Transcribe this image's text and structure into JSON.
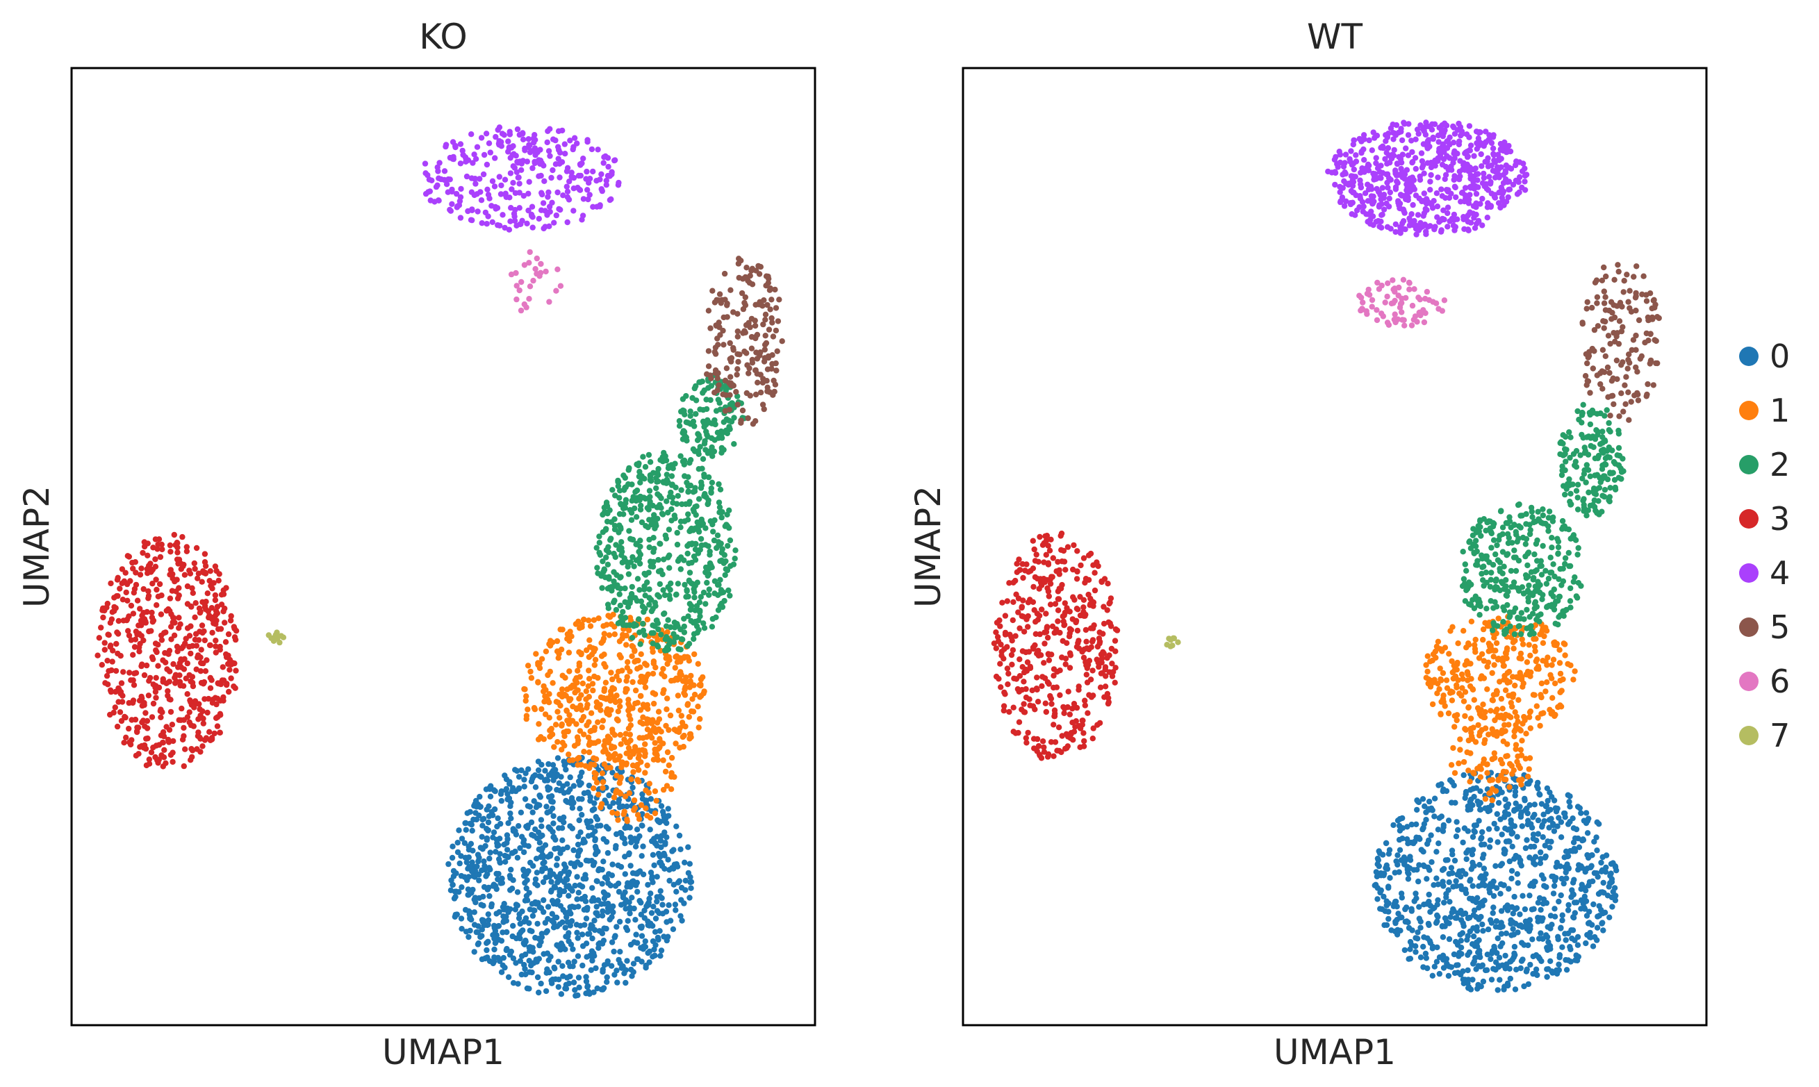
{
  "chart_data": {
    "type": "scatter",
    "legend": {
      "placement": "right",
      "entries": [
        {
          "label": "0",
          "color": "#1f77b4"
        },
        {
          "label": "1",
          "color": "#ff7f0e"
        },
        {
          "label": "2",
          "color": "#279e68"
        },
        {
          "label": "3",
          "color": "#d62728"
        },
        {
          "label": "4",
          "color": "#aa40fc"
        },
        {
          "label": "5",
          "color": "#8c564b"
        },
        {
          "label": "6",
          "color": "#e377c2"
        },
        {
          "label": "7",
          "color": "#b5bd61"
        }
      ]
    },
    "panels": [
      {
        "title": "KO",
        "xlabel": "UMAP1",
        "ylabel": "UMAP2",
        "grid": false,
        "ticks": false,
        "xlim": [
          0,
          10
        ],
        "ylim": [
          0,
          10
        ],
        "clusters": [
          {
            "label": "0",
            "n": 1150,
            "shape": "ellipse",
            "cx": 6.7,
            "cy": 1.55,
            "rx": 1.65,
            "ry": 1.25
          },
          {
            "label": "1",
            "n": 520,
            "shape": "ellipse",
            "cx": 7.3,
            "cy": 3.45,
            "rx": 1.25,
            "ry": 0.85
          },
          {
            "label": "1",
            "n": 90,
            "shape": "ellipse",
            "cx": 7.55,
            "cy": 2.6,
            "rx": 0.6,
            "ry": 0.5
          },
          {
            "label": "2",
            "n": 560,
            "shape": "ellipse",
            "cx": 8.0,
            "cy": 4.95,
            "rx": 0.95,
            "ry": 1.05
          },
          {
            "label": "2",
            "n": 140,
            "shape": "ellipse",
            "cx": 8.6,
            "cy": 6.35,
            "rx": 0.45,
            "ry": 0.45
          },
          {
            "label": "3",
            "n": 560,
            "shape": "ellipse",
            "cx": 1.3,
            "cy": 3.9,
            "rx": 0.95,
            "ry": 1.25
          },
          {
            "label": "4",
            "n": 320,
            "shape": "ellipse",
            "cx": 6.05,
            "cy": 8.85,
            "rx": 1.35,
            "ry": 0.55
          },
          {
            "label": "5",
            "n": 190,
            "shape": "ellipse",
            "cx": 9.05,
            "cy": 7.15,
            "rx": 0.55,
            "ry": 0.9
          },
          {
            "label": "6",
            "n": 26,
            "shape": "ellipse",
            "cx": 6.25,
            "cy": 7.75,
            "rx": 0.35,
            "ry": 0.35
          },
          {
            "label": "7",
            "n": 14,
            "shape": "ellipse",
            "cx": 2.75,
            "cy": 4.05,
            "rx": 0.12,
            "ry": 0.06
          }
        ]
      },
      {
        "title": "WT",
        "xlabel": "UMAP1",
        "ylabel": "UMAP2",
        "grid": false,
        "ticks": false,
        "xlim": [
          0,
          10
        ],
        "ylim": [
          0,
          10
        ],
        "clusters": [
          {
            "label": "0",
            "n": 950,
            "shape": "ellipse",
            "cx": 7.15,
            "cy": 1.5,
            "rx": 1.65,
            "ry": 1.15
          },
          {
            "label": "1",
            "n": 330,
            "shape": "ellipse",
            "cx": 7.2,
            "cy": 3.65,
            "rx": 1.05,
            "ry": 0.65
          },
          {
            "label": "1",
            "n": 80,
            "shape": "ellipse",
            "cx": 7.1,
            "cy": 2.75,
            "rx": 0.55,
            "ry": 0.4
          },
          {
            "label": "2",
            "n": 330,
            "shape": "ellipse",
            "cx": 7.5,
            "cy": 4.75,
            "rx": 0.85,
            "ry": 0.7
          },
          {
            "label": "2",
            "n": 170,
            "shape": "ellipse",
            "cx": 8.45,
            "cy": 5.9,
            "rx": 0.45,
            "ry": 0.6
          },
          {
            "label": "3",
            "n": 430,
            "shape": "ellipse",
            "cx": 1.25,
            "cy": 3.95,
            "rx": 0.85,
            "ry": 1.2
          },
          {
            "label": "4",
            "n": 640,
            "shape": "ellipse",
            "cx": 6.25,
            "cy": 8.85,
            "rx": 1.35,
            "ry": 0.6
          },
          {
            "label": "5",
            "n": 150,
            "shape": "ellipse",
            "cx": 8.85,
            "cy": 7.15,
            "rx": 0.55,
            "ry": 0.85
          },
          {
            "label": "6",
            "n": 75,
            "shape": "ellipse",
            "cx": 5.9,
            "cy": 7.55,
            "rx": 0.6,
            "ry": 0.25
          },
          {
            "label": "7",
            "n": 8,
            "shape": "ellipse",
            "cx": 2.8,
            "cy": 4.0,
            "rx": 0.1,
            "ry": 0.05
          }
        ]
      }
    ]
  }
}
